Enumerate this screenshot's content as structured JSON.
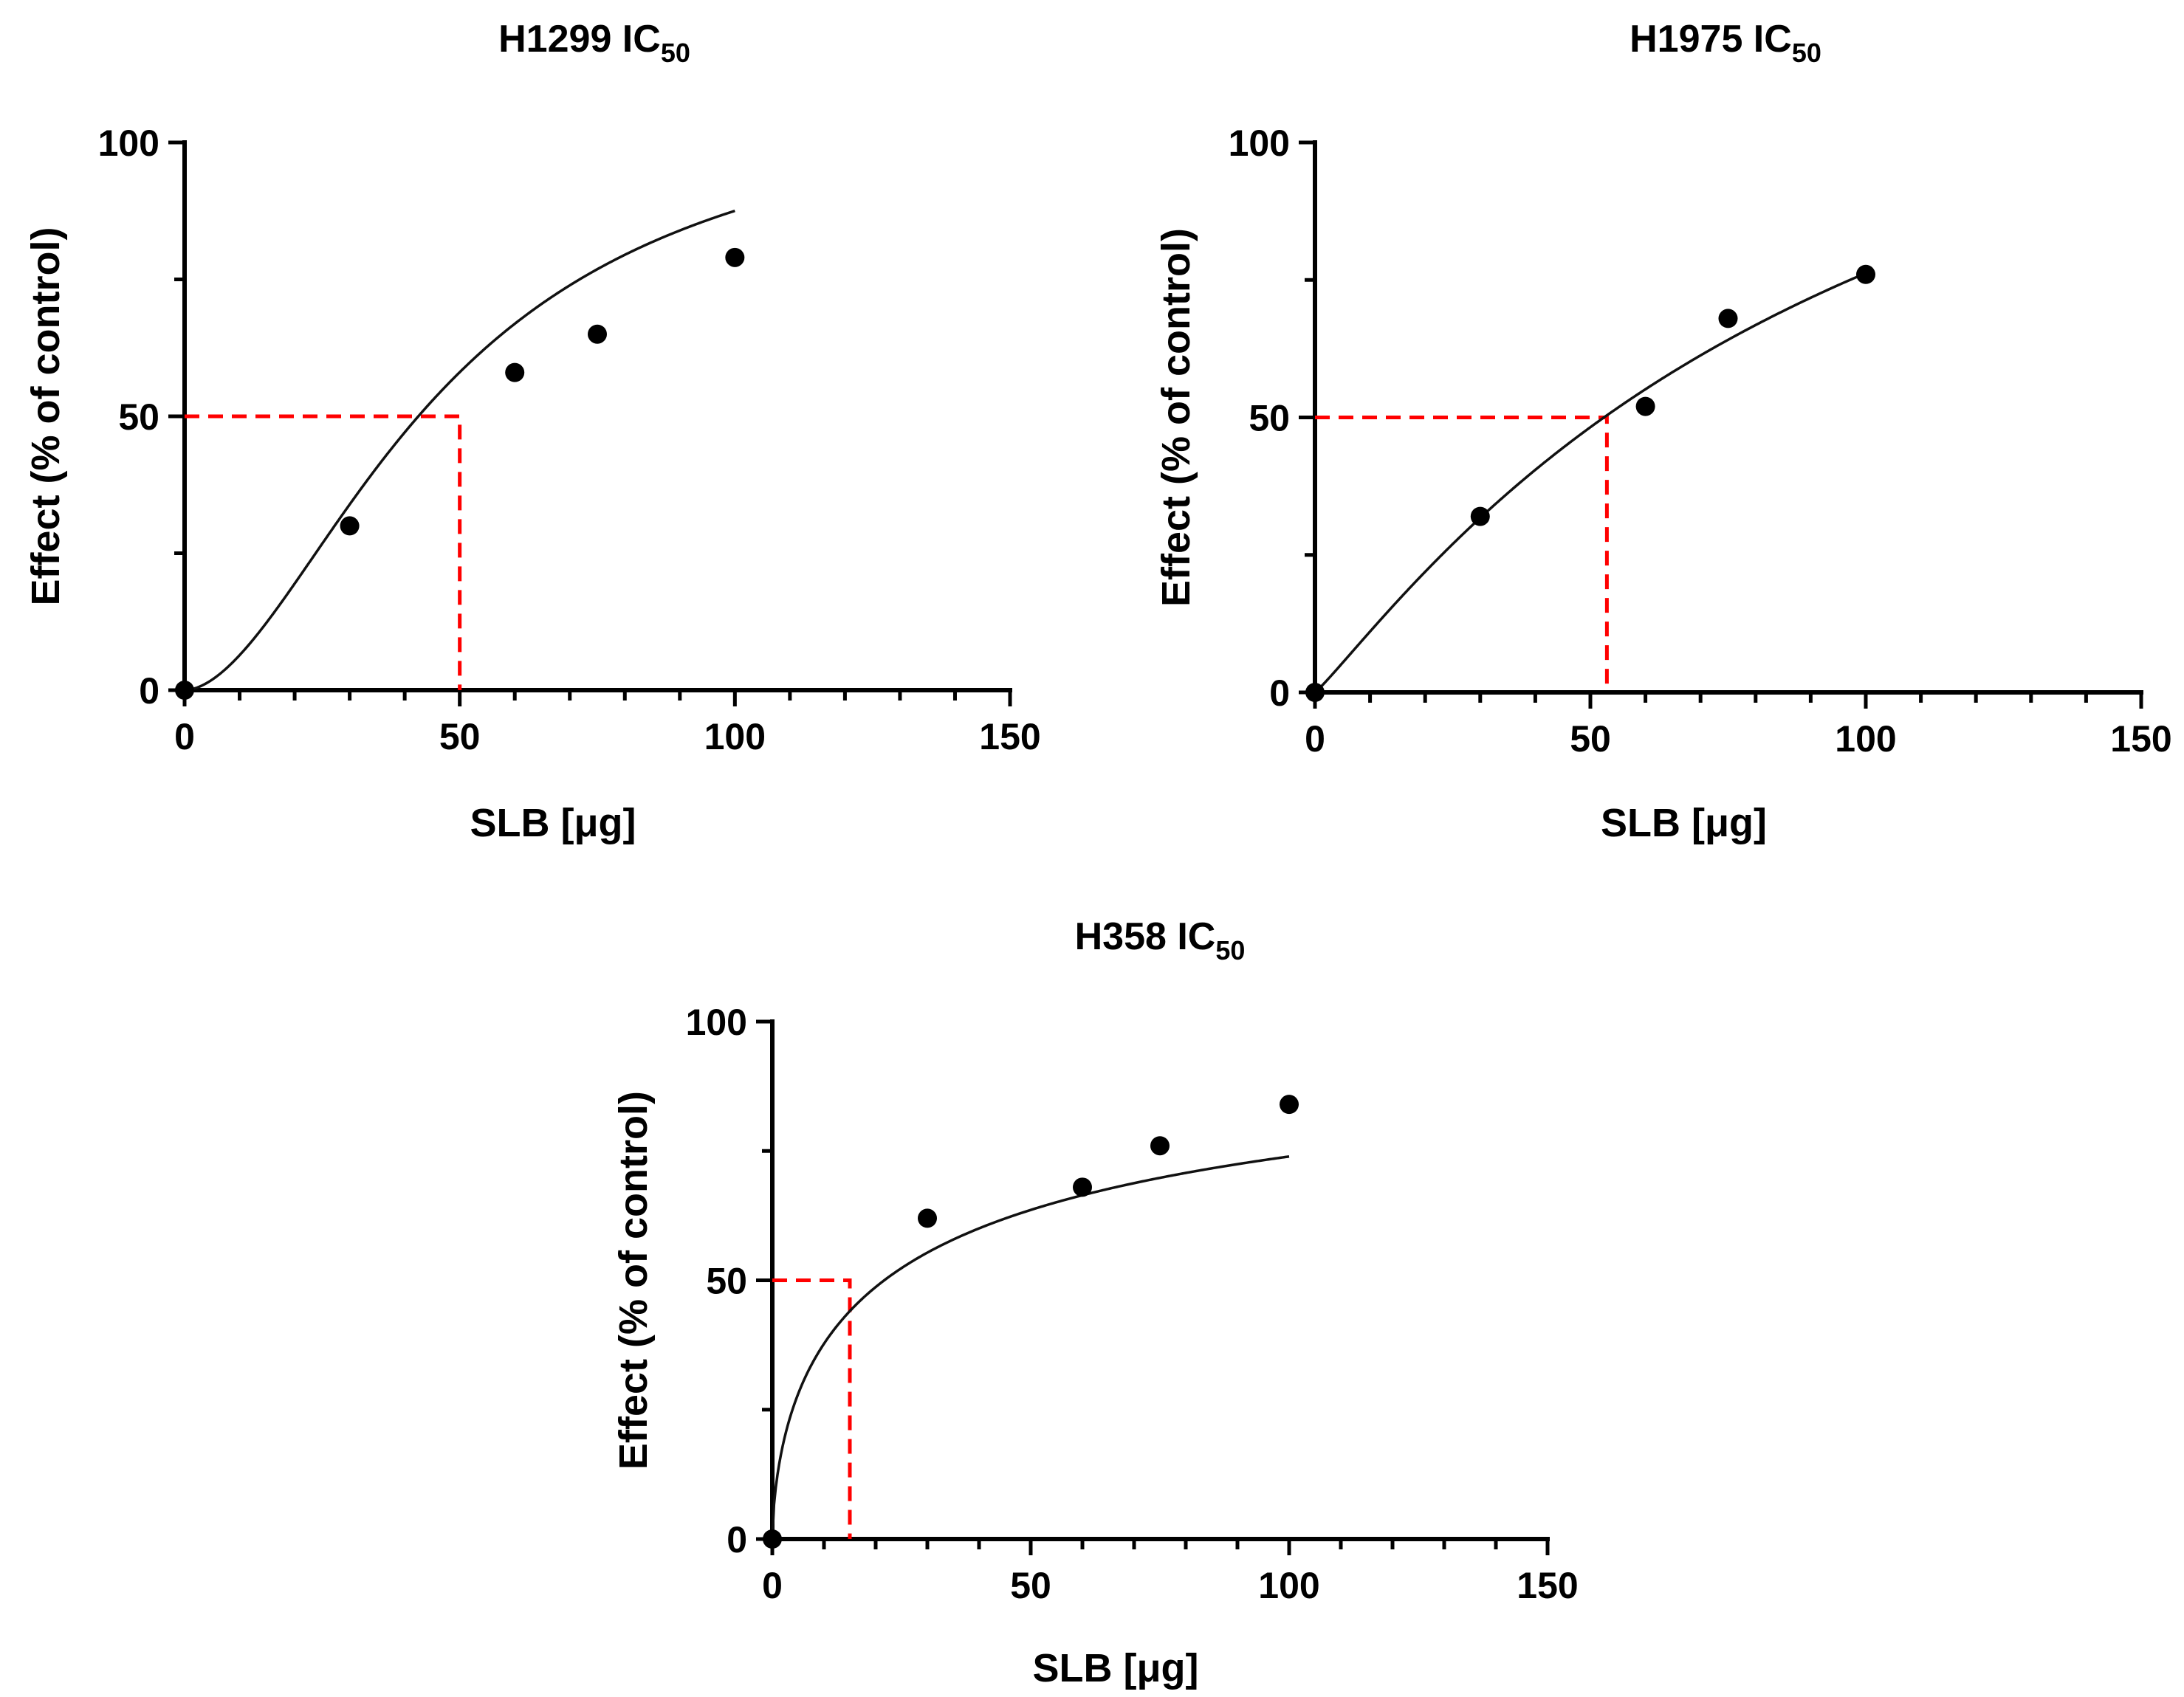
{
  "chart_data": [
    {
      "type": "scatter",
      "title": "H1299 IC",
      "title_subscript": "50",
      "xlabel": "SLB [μg]",
      "ylabel": "Effect (% of control)",
      "xlim": [
        0,
        150
      ],
      "ylim": [
        0,
        100
      ],
      "x_ticks": [
        "0",
        "50",
        "100",
        "150"
      ],
      "y_ticks": [
        "0",
        "50",
        "100"
      ],
      "x_minor_step": 10,
      "y_minor_step": 25,
      "grid": false,
      "points": [
        {
          "x": 0,
          "y": 0
        },
        {
          "x": 30,
          "y": 30
        },
        {
          "x": 60,
          "y": 58
        },
        {
          "x": 75,
          "y": 65
        },
        {
          "x": 100,
          "y": 79
        }
      ],
      "fit_curve": {
        "model": "hill",
        "bottom": 0,
        "top": 110,
        "ec50": 47,
        "hill": 1.8
      },
      "ic50": {
        "x": 50,
        "y": 50
      }
    },
    {
      "type": "scatter",
      "title": "H1975 IC",
      "title_subscript": "50",
      "xlabel": "SLB [μg]",
      "ylabel": "Effect (% of control)",
      "xlim": [
        0,
        150
      ],
      "ylim": [
        0,
        100
      ],
      "x_ticks": [
        "0",
        "50",
        "100",
        "150"
      ],
      "y_ticks": [
        "0",
        "50",
        "100"
      ],
      "x_minor_step": 10,
      "y_minor_step": 25,
      "grid": false,
      "points": [
        {
          "x": 0,
          "y": 0
        },
        {
          "x": 30,
          "y": 32
        },
        {
          "x": 60,
          "y": 52
        },
        {
          "x": 75,
          "y": 68
        },
        {
          "x": 100,
          "y": 76
        }
      ],
      "fit_curve": {
        "model": "hill",
        "bottom": 0,
        "top": 155,
        "ec50": 103,
        "hill": 1.1
      },
      "ic50": {
        "x": 53,
        "y": 50
      }
    },
    {
      "type": "scatter",
      "title": "H358 IC",
      "title_subscript": "50",
      "xlabel": "SLB [μg]",
      "ylabel": "Effect (% of control)",
      "xlim": [
        0,
        150
      ],
      "ylim": [
        0,
        100
      ],
      "x_ticks": [
        "0",
        "50",
        "100",
        "150"
      ],
      "y_ticks": [
        "0",
        "50",
        "100"
      ],
      "x_minor_step": 10,
      "y_minor_step": 25,
      "grid": false,
      "points": [
        {
          "x": 0,
          "y": 0
        },
        {
          "x": 30,
          "y": 62
        },
        {
          "x": 60,
          "y": 68
        },
        {
          "x": 75,
          "y": 76
        },
        {
          "x": 100,
          "y": 84
        }
      ],
      "fit_curve": {
        "model": "hill",
        "bottom": 0,
        "top": 106,
        "ec50": 26,
        "hill": 0.62
      },
      "ic50": {
        "x": 15,
        "y": 50
      }
    }
  ],
  "colors": {
    "ic50_line": "#ff0000",
    "points": "#000000",
    "curve": "#111111",
    "axes": "#000000"
  }
}
